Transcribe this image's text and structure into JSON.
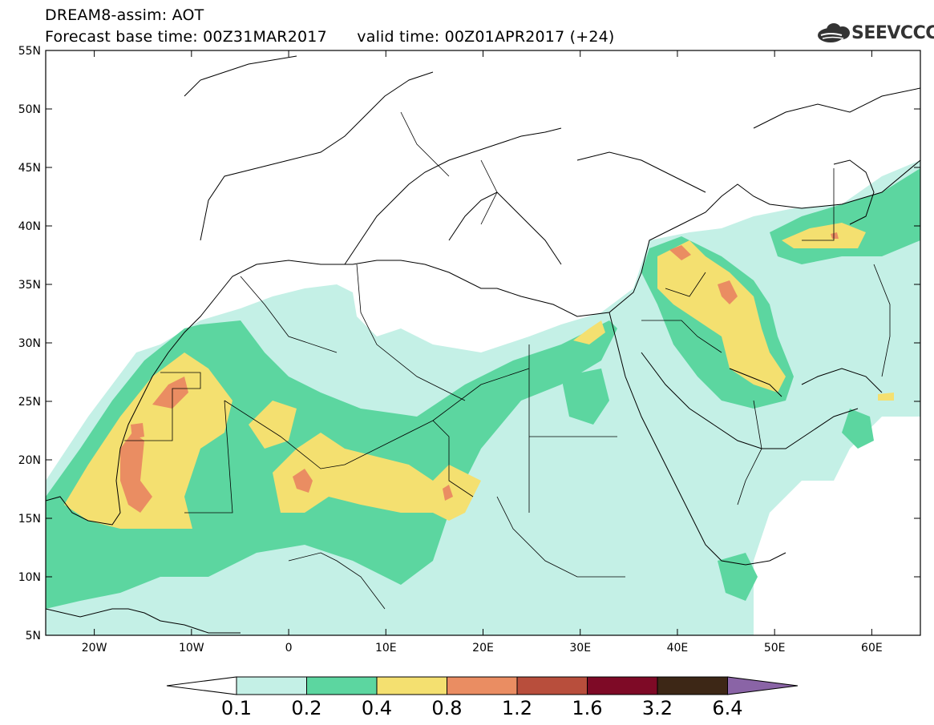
{
  "header": {
    "title_line1": "DREAM8-assim: AOT",
    "title_line2": "Forecast base time: 00Z31MAR2017      valid time: 00Z01APR2017 (+24)",
    "logo_text": "SEEVCCC"
  },
  "map": {
    "lon_range": [
      -25,
      65
    ],
    "lat_range": [
      5,
      55
    ],
    "lat_ticks": [
      {
        "value": 55,
        "label": "55N"
      },
      {
        "value": 50,
        "label": "50N"
      },
      {
        "value": 45,
        "label": "45N"
      },
      {
        "value": 40,
        "label": "40N"
      },
      {
        "value": 35,
        "label": "35N"
      },
      {
        "value": 30,
        "label": "30N"
      },
      {
        "value": 25,
        "label": "25N"
      },
      {
        "value": 20,
        "label": "20N"
      },
      {
        "value": 15,
        "label": "15N"
      },
      {
        "value": 10,
        "label": "10N"
      },
      {
        "value": 5,
        "label": "5N"
      }
    ],
    "lon_ticks": [
      {
        "value": -20,
        "label": "20W"
      },
      {
        "value": -10,
        "label": "10W"
      },
      {
        "value": 0,
        "label": "0"
      },
      {
        "value": 10,
        "label": "10E"
      },
      {
        "value": 20,
        "label": "20E"
      },
      {
        "value": 30,
        "label": "30E"
      },
      {
        "value": 40,
        "label": "40E"
      },
      {
        "value": 50,
        "label": "50E"
      },
      {
        "value": 60,
        "label": "60E"
      }
    ]
  },
  "colorbar": {
    "colors": [
      "#ffffff",
      "#c4f0e6",
      "#5cd6a0",
      "#f4e070",
      "#ea8d62",
      "#b84e3c",
      "#7e0a26",
      "#3d2716",
      "#8a64a6"
    ],
    "labels": [
      "0.1",
      "0.2",
      "0.4",
      "0.8",
      "1.2",
      "1.6",
      "3.2",
      "6.4"
    ]
  }
}
